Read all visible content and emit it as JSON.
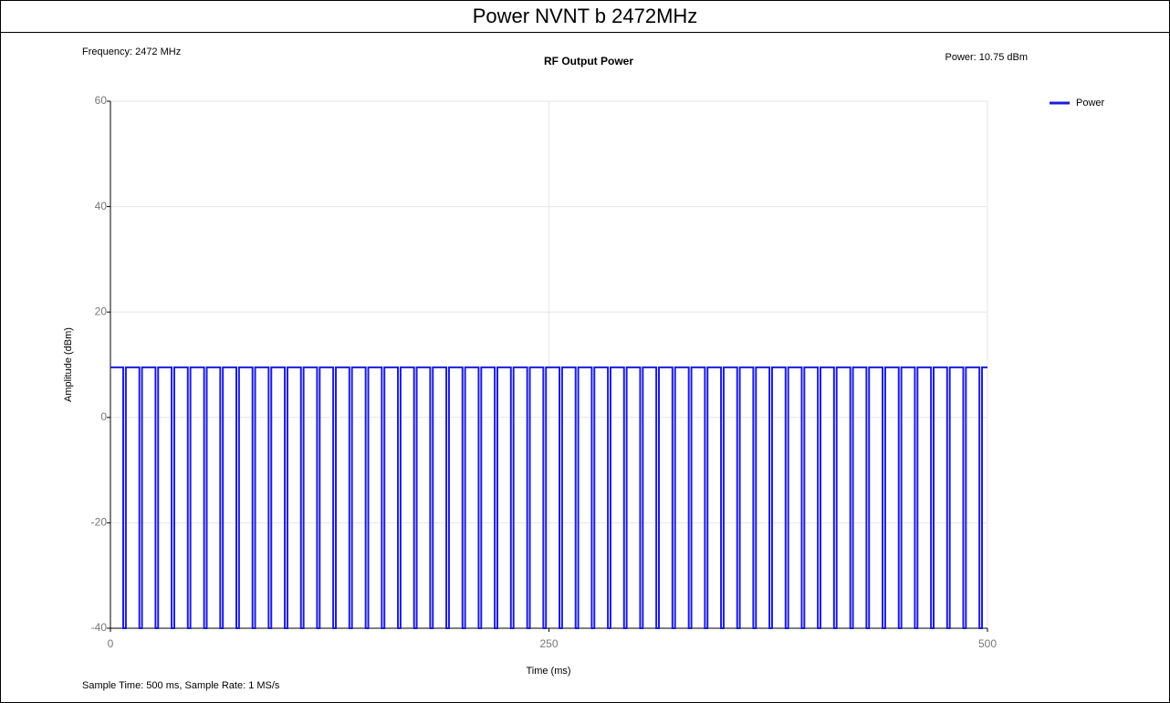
{
  "chart_data": {
    "type": "line",
    "page_title": "Power NVNT b 2472MHz",
    "title": "RF Output Power",
    "annotation_left": "Frequency: 2472 MHz",
    "annotation_right": "Power: 10.75 dBm",
    "footer": "Sample Time: 500 ms,  Sample Rate: 1 MS/s",
    "x_label": "Time (ms)",
    "y_label": "Amplitude (dBm)",
    "xlim": [
      0,
      500
    ],
    "xticks": [
      0,
      250,
      500
    ],
    "ylim": [
      -40,
      60
    ],
    "yticks": [
      -40,
      -20,
      0,
      20,
      40,
      60
    ],
    "grid": true,
    "legend": "top-right",
    "x": [
      0,
      7.3,
      7.3,
      8.8,
      8.8,
      16.5,
      16.5,
      18,
      18,
      25.7,
      25.7,
      27.2,
      27.2,
      34.9,
      34.9,
      36.4,
      36.4,
      44.1,
      44.1,
      45.6,
      45.6,
      53.4,
      53.4,
      54.9,
      54.9,
      62.6,
      62.6,
      64.1,
      64.1,
      71.8,
      71.8,
      73.3,
      73.3,
      81,
      81,
      82.5,
      82.5,
      90.2,
      90.2,
      91.7,
      91.7,
      99.4,
      99.4,
      100.9,
      100.9,
      108.6,
      108.6,
      110.1,
      110.1,
      117.8,
      117.8,
      119.3,
      119.3,
      127,
      127,
      128.5,
      128.5,
      136.2,
      136.2,
      137.7,
      137.7,
      145.5,
      145.5,
      147,
      147,
      154.7,
      154.7,
      156.2,
      156.2,
      163.9,
      163.9,
      165.4,
      165.4,
      173.1,
      173.1,
      174.6,
      174.6,
      182.3,
      182.3,
      183.8,
      183.8,
      191.5,
      191.5,
      193,
      193,
      200.7,
      200.7,
      202.2,
      202.2,
      209.9,
      209.9,
      211.4,
      211.4,
      219.1,
      219.1,
      220.6,
      220.6,
      228.3,
      228.3,
      229.8,
      229.8,
      237.6,
      237.6,
      239.1,
      239.1,
      246.8,
      246.8,
      248.3,
      248.3,
      256,
      256,
      257.5,
      257.5,
      265.2,
      265.2,
      266.7,
      266.7,
      274.4,
      274.4,
      275.9,
      275.9,
      283.6,
      283.6,
      285.1,
      285.1,
      292.8,
      292.8,
      294.3,
      294.3,
      302,
      302,
      303.5,
      303.5,
      311.2,
      311.2,
      312.7,
      312.7,
      320.4,
      320.4,
      321.9,
      321.9,
      329.7,
      329.7,
      331.2,
      331.2,
      338.9,
      338.9,
      340.4,
      340.4,
      348.1,
      348.1,
      349.6,
      349.6,
      357.3,
      357.3,
      358.8,
      358.8,
      366.5,
      366.5,
      368,
      368,
      375.7,
      375.7,
      377.2,
      377.2,
      384.9,
      384.9,
      386.4,
      386.4,
      394.1,
      394.1,
      395.6,
      395.6,
      403.3,
      403.3,
      404.8,
      404.8,
      412.5,
      412.5,
      414,
      414,
      421.8,
      421.8,
      423.3,
      423.3,
      431,
      431,
      432.5,
      432.5,
      440.2,
      440.2,
      441.7,
      441.7,
      449.4,
      449.4,
      450.9,
      450.9,
      458.6,
      458.6,
      460.1,
      460.1,
      467.8,
      467.8,
      469.3,
      469.3,
      477,
      477,
      478.5,
      478.5,
      486.2,
      486.2,
      487.7,
      487.7,
      495.4,
      495.4,
      496.9,
      496.9,
      500
    ],
    "series": [
      {
        "name": "Power",
        "color": "#1c1cdc",
        "values": [
          9.5,
          9.5,
          -40,
          -40,
          9.5,
          9.5,
          -40,
          -40,
          9.5,
          9.5,
          -40,
          -40,
          9.5,
          9.5,
          -40,
          -40,
          9.5,
          9.5,
          -40,
          -40,
          9.5,
          9.5,
          -40,
          -40,
          9.5,
          9.5,
          -40,
          -40,
          9.5,
          9.5,
          -40,
          -40,
          9.5,
          9.5,
          -40,
          -40,
          9.5,
          9.5,
          -40,
          -40,
          9.5,
          9.5,
          -40,
          -40,
          9.5,
          9.5,
          -40,
          -40,
          9.5,
          9.5,
          -40,
          -40,
          9.5,
          9.5,
          -40,
          -40,
          9.5,
          9.5,
          -40,
          -40,
          9.5,
          9.5,
          -40,
          -40,
          9.5,
          9.5,
          -40,
          -40,
          9.5,
          9.5,
          -40,
          -40,
          9.5,
          9.5,
          -40,
          -40,
          9.5,
          9.5,
          -40,
          -40,
          9.5,
          9.5,
          -40,
          -40,
          9.5,
          9.5,
          -40,
          -40,
          9.5,
          9.5,
          -40,
          -40,
          9.5,
          9.5,
          -40,
          -40,
          9.5,
          9.5,
          -40,
          -40,
          9.5,
          9.5,
          -40,
          -40,
          9.5,
          9.5,
          -40,
          -40,
          9.5,
          9.5,
          -40,
          -40,
          9.5,
          9.5,
          -40,
          -40,
          9.5,
          9.5,
          -40,
          -40,
          9.5,
          9.5,
          -40,
          -40,
          9.5,
          9.5,
          -40,
          -40,
          9.5,
          9.5,
          -40,
          -40,
          9.5,
          9.5,
          -40,
          -40,
          9.5,
          9.5,
          -40,
          -40,
          9.5,
          9.5,
          -40,
          -40,
          9.5,
          9.5,
          -40,
          -40,
          9.5,
          9.5,
          -40,
          -40,
          9.5,
          9.5,
          -40,
          -40,
          9.5,
          9.5,
          -40,
          -40,
          9.5,
          9.5,
          -40,
          -40,
          9.5,
          9.5,
          -40,
          -40,
          9.5,
          9.5,
          -40,
          -40,
          9.5,
          9.5,
          -40,
          -40,
          9.5,
          9.5,
          -40,
          -40,
          9.5,
          9.5,
          -40,
          -40,
          9.5,
          9.5,
          -40,
          -40,
          9.5,
          9.5,
          -40,
          -40,
          9.5,
          9.5,
          -40,
          -40,
          9.5,
          9.5,
          -40,
          -40,
          9.5,
          9.5,
          -40,
          -40,
          9.5,
          9.5,
          -40,
          -40,
          9.5,
          9.5,
          -40,
          -40,
          9.5,
          9.5,
          -40,
          -40,
          9.5,
          9.5
        ]
      }
    ]
  }
}
